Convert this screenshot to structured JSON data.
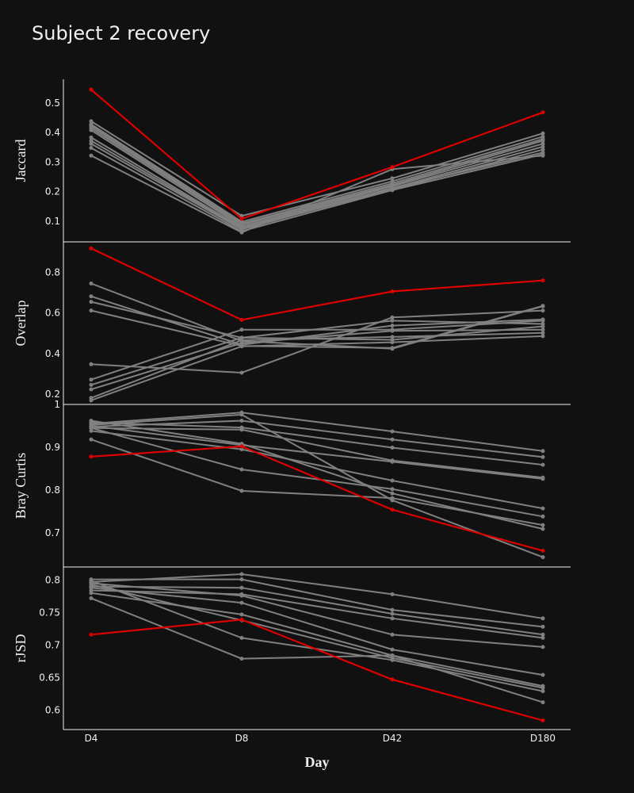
{
  "title": "Subject 2 recovery",
  "colors": {
    "background": "#111111",
    "text": "#f0f0f0",
    "highlight": "#dd0000",
    "others": "#808080"
  },
  "chart_data": {
    "type": "line",
    "title": "Subject 2 recovery",
    "xlabel": "Day",
    "categories": [
      "D4",
      "D8",
      "D42",
      "D180"
    ],
    "legend": "none",
    "grid": false,
    "panels": [
      {
        "ylabel": "Jaccard",
        "ylim": [
          0.03,
          0.58
        ],
        "yticks": [
          0.1,
          0.2,
          0.3,
          0.4,
          0.5
        ],
        "ytick_labels": [
          "0.1",
          "0.2",
          "0.3",
          "0.4",
          "0.5"
        ],
        "highlight": [
          0.545,
          0.108,
          0.283,
          0.468
        ],
        "series": [
          [
            0.438,
            0.118,
            0.245,
            0.397
          ],
          [
            0.428,
            0.098,
            0.235,
            0.386
          ],
          [
            0.422,
            0.092,
            0.228,
            0.378
          ],
          [
            0.415,
            0.088,
            0.222,
            0.372
          ],
          [
            0.408,
            0.082,
            0.218,
            0.362
          ],
          [
            0.383,
            0.078,
            0.212,
            0.352
          ],
          [
            0.372,
            0.075,
            0.208,
            0.342
          ],
          [
            0.362,
            0.072,
            0.212,
            0.332
          ],
          [
            0.348,
            0.066,
            0.205,
            0.326
          ],
          [
            0.322,
            0.062,
            0.276,
            0.322
          ]
        ]
      },
      {
        "ylabel": "Overlap",
        "ylim": [
          0.15,
          0.95
        ],
        "yticks": [
          0.2,
          0.4,
          0.6,
          0.8
        ],
        "ytick_labels": [
          "0.2",
          "0.4",
          "0.6",
          "0.8"
        ],
        "highlight": [
          0.918,
          0.566,
          0.706,
          0.76
        ],
        "series": [
          [
            0.745,
            0.462,
            0.424,
            0.633
          ],
          [
            0.682,
            0.444,
            0.538,
            0.568
          ],
          [
            0.655,
            0.478,
            0.562,
            0.546
          ],
          [
            0.612,
            0.438,
            0.428,
            0.635
          ],
          [
            0.348,
            0.306,
            0.578,
            0.612
          ],
          [
            0.272,
            0.518,
            0.518,
            0.562
          ],
          [
            0.246,
            0.478,
            0.468,
            0.534
          ],
          [
            0.224,
            0.452,
            0.512,
            0.518
          ],
          [
            0.182,
            0.466,
            0.482,
            0.502
          ],
          [
            0.17,
            0.436,
            0.456,
            0.486
          ]
        ]
      },
      {
        "ylabel": "Bray Curtis",
        "ylim": [
          0.62,
          1.0
        ],
        "yticks": [
          0.7,
          0.8,
          0.9,
          1
        ],
        "ytick_labels": [
          "0.7",
          "0.8",
          "0.9",
          "1"
        ],
        "highlight": [
          0.878,
          0.902,
          0.754,
          0.658
        ],
        "series": [
          [
            0.955,
            0.981,
            0.937,
            0.891
          ],
          [
            0.948,
            0.962,
            0.918,
            0.877
          ],
          [
            0.958,
            0.946,
            0.899,
            0.859
          ],
          [
            0.945,
            0.941,
            0.869,
            0.829
          ],
          [
            0.95,
            0.905,
            0.866,
            0.826
          ],
          [
            0.938,
            0.895,
            0.822,
            0.757
          ],
          [
            0.945,
            0.848,
            0.802,
            0.738
          ],
          [
            0.918,
            0.798,
            0.781,
            0.718
          ],
          [
            0.962,
            0.908,
            0.792,
            0.709
          ],
          [
            0.952,
            0.976,
            0.776,
            0.643
          ]
        ]
      },
      {
        "ylabel": "rJSD",
        "ylim": [
          0.57,
          0.82
        ],
        "yticks": [
          0.6,
          0.65,
          0.7,
          0.75,
          0.8
        ],
        "ytick_labels": [
          "0.6",
          "0.65",
          "0.7",
          "0.75",
          "0.8"
        ],
        "highlight": [
          0.716,
          0.739,
          0.647,
          0.584
        ],
        "series": [
          [
            0.797,
            0.809,
            0.778,
            0.741
          ],
          [
            0.801,
            0.801,
            0.754,
            0.728
          ],
          [
            0.79,
            0.788,
            0.748,
            0.716
          ],
          [
            0.784,
            0.778,
            0.741,
            0.711
          ],
          [
            0.795,
            0.776,
            0.716,
            0.697
          ],
          [
            0.788,
            0.765,
            0.693,
            0.654
          ],
          [
            0.78,
            0.747,
            0.684,
            0.637
          ],
          [
            0.793,
            0.738,
            0.68,
            0.634
          ],
          [
            0.799,
            0.711,
            0.677,
            0.629
          ],
          [
            0.772,
            0.679,
            0.684,
            0.612
          ]
        ]
      }
    ]
  }
}
